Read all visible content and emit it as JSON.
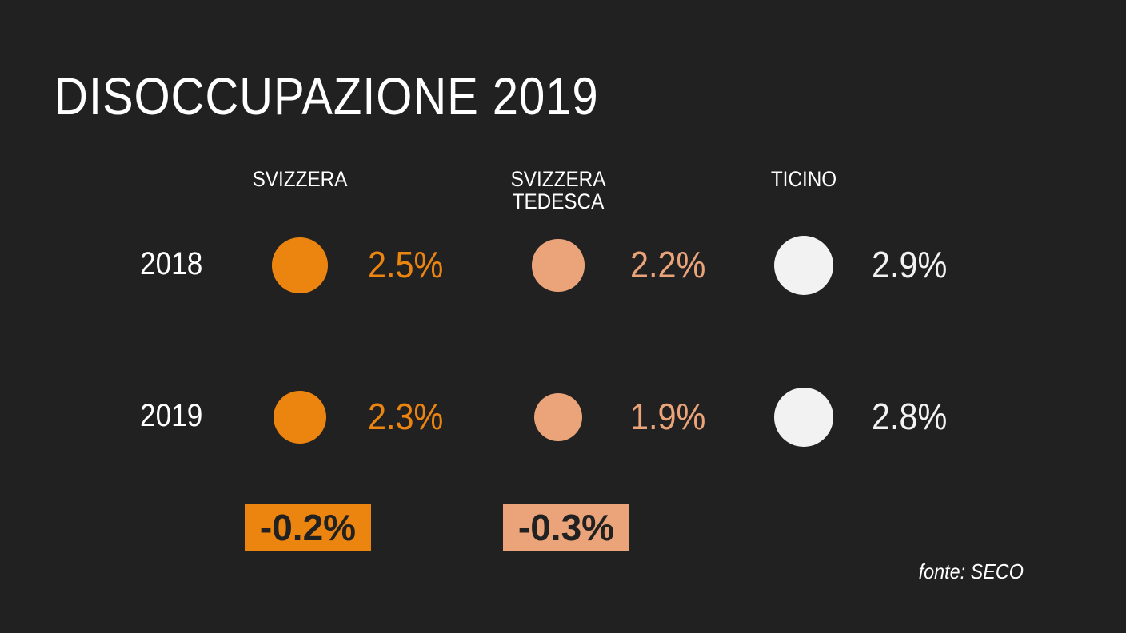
{
  "title": "DISOCCUPAZIONE 2019",
  "source": "fonte: SECO",
  "colors": {
    "background": "#222121",
    "svizzera": "#ec8510",
    "svizzera_tedesca": "#eba47a",
    "ticino": "#f2f2f2"
  },
  "chart_data": {
    "type": "bubble",
    "title": "DISOCCUPAZIONE 2019",
    "years": [
      "2018",
      "2019"
    ],
    "series": [
      {
        "name": "SVIZZERA",
        "color": "#ec8510",
        "values": [
          2.5,
          2.3
        ],
        "labels": [
          "2.5%",
          "2.3%"
        ],
        "change": -0.2,
        "change_label": "-0.2%"
      },
      {
        "name": "SVIZZERA\nTEDESCA",
        "color": "#eba47a",
        "values": [
          2.2,
          1.9
        ],
        "labels": [
          "2.2%",
          "1.9%"
        ],
        "change": -0.3,
        "change_label": "-0.3%"
      },
      {
        "name": "TICINO",
        "color": "#f2f2f2",
        "values": [
          2.9,
          2.8
        ],
        "labels": [
          "2.9%",
          "2.8%"
        ]
      }
    ]
  }
}
